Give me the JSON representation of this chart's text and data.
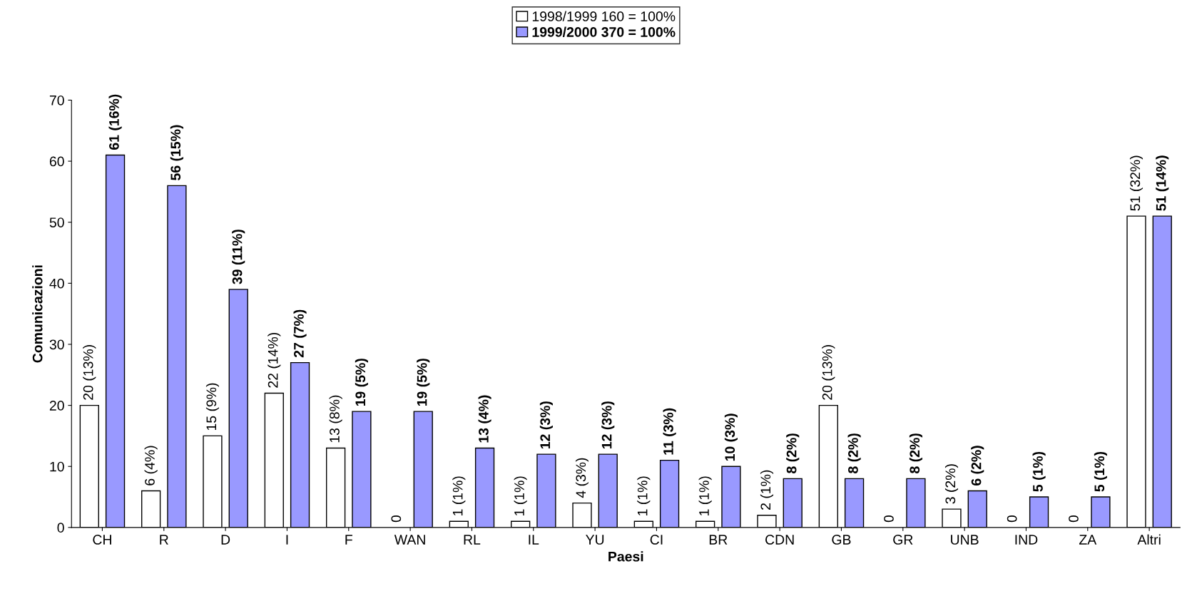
{
  "chart_data": {
    "type": "bar",
    "xlabel": "Paesi",
    "ylabel": "Comunicazioni",
    "categories": [
      "CH",
      "R",
      "D",
      "I",
      "F",
      "WAN",
      "RL",
      "IL",
      "YU",
      "CI",
      "BR",
      "CDN",
      "GB",
      "GR",
      "UNB",
      "IND",
      "ZA",
      "Altri"
    ],
    "series": [
      {
        "name": "1998/1999 160 = 100%",
        "color": "#ffffff",
        "values": [
          20,
          6,
          15,
          22,
          13,
          0,
          1,
          1,
          4,
          1,
          1,
          2,
          20,
          0,
          3,
          0,
          0,
          51
        ],
        "value_labels": [
          "20 (13%)",
          "6 (4%)",
          "15 (9%)",
          "22 (14%)",
          "13 (8%)",
          "0",
          "1 (1%)",
          "1 (1%)",
          "4 (3%)",
          "1 (1%)",
          "1 (1%)",
          "2 (1%)",
          "20 (13%)",
          "0",
          "3 (2%)",
          "0",
          "0",
          "51 (32%)"
        ]
      },
      {
        "name": "1999/2000 370 = 100%",
        "color": "#9999ff",
        "values": [
          61,
          56,
          39,
          27,
          19,
          19,
          13,
          12,
          12,
          11,
          10,
          8,
          8,
          8,
          6,
          5,
          5,
          51
        ],
        "value_labels": [
          "61 (16%)",
          "56 (15%)",
          "39 (11%)",
          "27 (7%)",
          "19 (5%)",
          "19 (5%)",
          "13 (4%)",
          "12 (3%)",
          "12 (3%)",
          "11 (3%)",
          "10 (3%)",
          "8 (2%)",
          "8 (2%)",
          "8 (2%)",
          "6 (2%)",
          "5 (1%)",
          "5 (1%)",
          "51 (14%)"
        ]
      }
    ],
    "ylim": [
      0,
      70
    ],
    "yticks": [
      0,
      10,
      20,
      30,
      40,
      50,
      60,
      70
    ],
    "grid": false,
    "legend": "top"
  }
}
